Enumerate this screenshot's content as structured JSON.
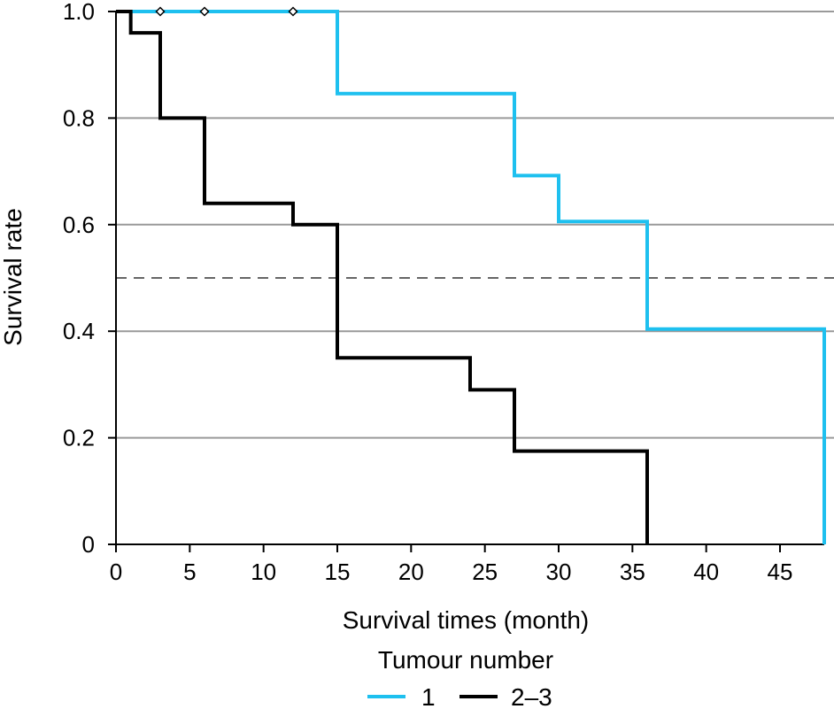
{
  "chart_data": {
    "type": "line",
    "step": true,
    "xlabel": "Survival times (month)",
    "ylabel": "Survival rate",
    "xlim": [
      0,
      48
    ],
    "ylim": [
      0,
      1
    ],
    "xticks": [
      0,
      5,
      10,
      15,
      20,
      25,
      30,
      35,
      40,
      45
    ],
    "xtick_labels": [
      "0",
      "5",
      "10",
      "15",
      "20",
      "25",
      "30",
      "35",
      "40",
      "45"
    ],
    "yticks": [
      0,
      0.2,
      0.4,
      0.6,
      0.8,
      1.0
    ],
    "ytick_labels": [
      "0",
      "0.2",
      "0.4",
      "0.6",
      "0.8",
      "1.0"
    ],
    "gridlines_y": [
      0.2,
      0.4,
      0.6,
      0.8,
      1.0
    ],
    "reference_line": {
      "y": 0.5,
      "style": "dashed"
    },
    "legend": {
      "title": "Tumour number",
      "position": "bottom-center"
    },
    "series": [
      {
        "name": "1",
        "color": "#1ec0ef",
        "x": [
          0,
          15,
          15,
          27,
          27,
          30,
          30,
          36,
          36,
          48,
          48
        ],
        "y": [
          1.0,
          1.0,
          0.846,
          0.846,
          0.692,
          0.692,
          0.606,
          0.606,
          0.404,
          0.404,
          0
        ],
        "censored": [
          {
            "x": 3,
            "y": 1.0
          },
          {
            "x": 6,
            "y": 1.0
          },
          {
            "x": 12,
            "y": 1.0
          }
        ]
      },
      {
        "name": "2–3",
        "color": "#000000",
        "x": [
          0,
          1,
          1,
          3,
          3,
          6,
          6,
          12,
          12,
          15,
          15,
          24,
          24,
          27,
          27,
          36,
          36
        ],
        "y": [
          1.0,
          1.0,
          0.96,
          0.96,
          0.8,
          0.8,
          0.64,
          0.64,
          0.6,
          0.6,
          0.35,
          0.35,
          0.29,
          0.29,
          0.175,
          0.175,
          0
        ],
        "censored": []
      }
    ]
  }
}
